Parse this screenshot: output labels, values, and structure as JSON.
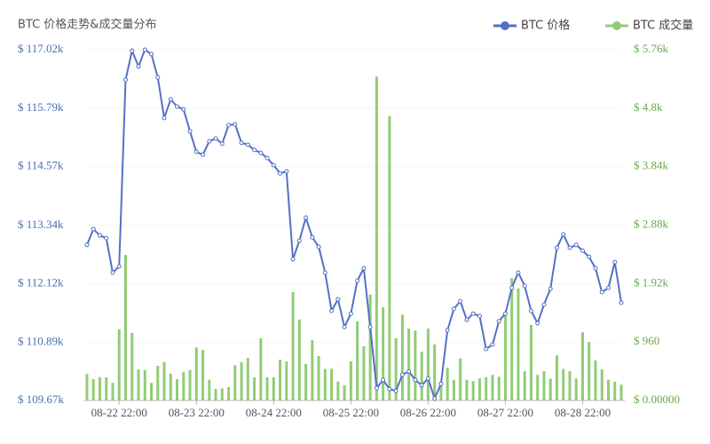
{
  "chart_data": {
    "type": "bar-line",
    "title": "BTC 价格走势&成交量分布",
    "categories": [
      null,
      null,
      null,
      null,
      null,
      "08-22 22:00",
      null,
      null,
      null,
      null,
      null,
      null,
      null,
      null,
      null,
      null,
      null,
      "08-23 22:00",
      null,
      null,
      null,
      null,
      null,
      null,
      null,
      null,
      null,
      null,
      null,
      "08-24 22:00",
      null,
      null,
      null,
      null,
      null,
      null,
      null,
      null,
      null,
      null,
      null,
      "08-25 22:00",
      null,
      null,
      null,
      null,
      null,
      null,
      null,
      null,
      null,
      null,
      null,
      "08-26 22:00",
      null,
      null,
      null,
      null,
      null,
      null,
      null,
      null,
      null,
      null,
      null,
      "08-27 22:00",
      null,
      null,
      null,
      null,
      null,
      null,
      null,
      null,
      null,
      null,
      null,
      "08-28 22:00",
      null,
      null,
      null,
      null,
      null,
      null
    ],
    "series": [
      {
        "name": "BTC 价格",
        "color": "#5470c6",
        "type": "line",
        "axis": "y",
        "values": [
          112930,
          113260,
          113130,
          113070,
          112350,
          112480,
          116390,
          117000,
          116670,
          117020,
          116930,
          116440,
          115590,
          115980,
          115830,
          115770,
          115310,
          114880,
          114820,
          115100,
          115160,
          115050,
          115440,
          115460,
          115070,
          115030,
          114920,
          114860,
          114750,
          114600,
          114430,
          114470,
          112630,
          113020,
          113500,
          113090,
          112890,
          112350,
          111550,
          111790,
          111210,
          111490,
          112180,
          112440,
          111210,
          109930,
          110100,
          109910,
          109870,
          110210,
          110280,
          110100,
          109990,
          110130,
          109710,
          110020,
          111140,
          111590,
          111750,
          111360,
          111490,
          111440,
          110750,
          110840,
          111330,
          111490,
          112030,
          112350,
          112070,
          111550,
          111290,
          111680,
          112010,
          112870,
          113150,
          112870,
          112930,
          112810,
          112680,
          112440,
          111940,
          112030,
          112570,
          111720
        ]
      },
      {
        "name": "BTC 成交量",
        "color": "#91cc75",
        "type": "bar",
        "axis": "y2",
        "values": [
          437,
          350,
          380,
          380,
          290,
          1170,
          2390,
          1110,
          510,
          500,
          290,
          570,
          630,
          440,
          350,
          470,
          500,
          870,
          830,
          340,
          190,
          200,
          220,
          580,
          630,
          700,
          380,
          1020,
          380,
          380,
          670,
          640,
          1780,
          1330,
          600,
          990,
          730,
          520,
          520,
          310,
          250,
          640,
          1300,
          890,
          1740,
          5320,
          1530,
          4670,
          1020,
          1410,
          1180,
          1150,
          800,
          1180,
          920,
          310,
          540,
          340,
          690,
          340,
          320,
          360,
          380,
          420,
          390,
          1440,
          2010,
          1840,
          480,
          1240,
          420,
          480,
          360,
          740,
          520,
          480,
          360,
          1120,
          960,
          660,
          510,
          340,
          310,
          260
        ]
      }
    ],
    "ylim": [
      109670,
      117020
    ],
    "yticks": [
      {
        "value": 109670,
        "label": "$ 109.67k"
      },
      {
        "value": 110890,
        "label": "$ 110.89k"
      },
      {
        "value": 112120,
        "label": "$ 112.12k"
      },
      {
        "value": 113340,
        "label": "$ 113.34k"
      },
      {
        "value": 114570,
        "label": "$ 114.57k"
      },
      {
        "value": 115790,
        "label": "$ 115.79k"
      },
      {
        "value": 117020,
        "label": "$ 117.02k"
      }
    ],
    "y2lim": [
      0,
      5760
    ],
    "y2ticks": [
      {
        "value": 0,
        "label": "$ 0.00000"
      },
      {
        "value": 960,
        "label": "$ 960"
      },
      {
        "value": 1920,
        "label": "$ 1.92k"
      },
      {
        "value": 2880,
        "label": "$ 2.88k"
      },
      {
        "value": 3840,
        "label": "$ 3.84k"
      },
      {
        "value": 4800,
        "label": "$ 4.8k"
      },
      {
        "value": 5760,
        "label": "$ 5.76k"
      }
    ],
    "grid": true,
    "legend": "top-right"
  }
}
